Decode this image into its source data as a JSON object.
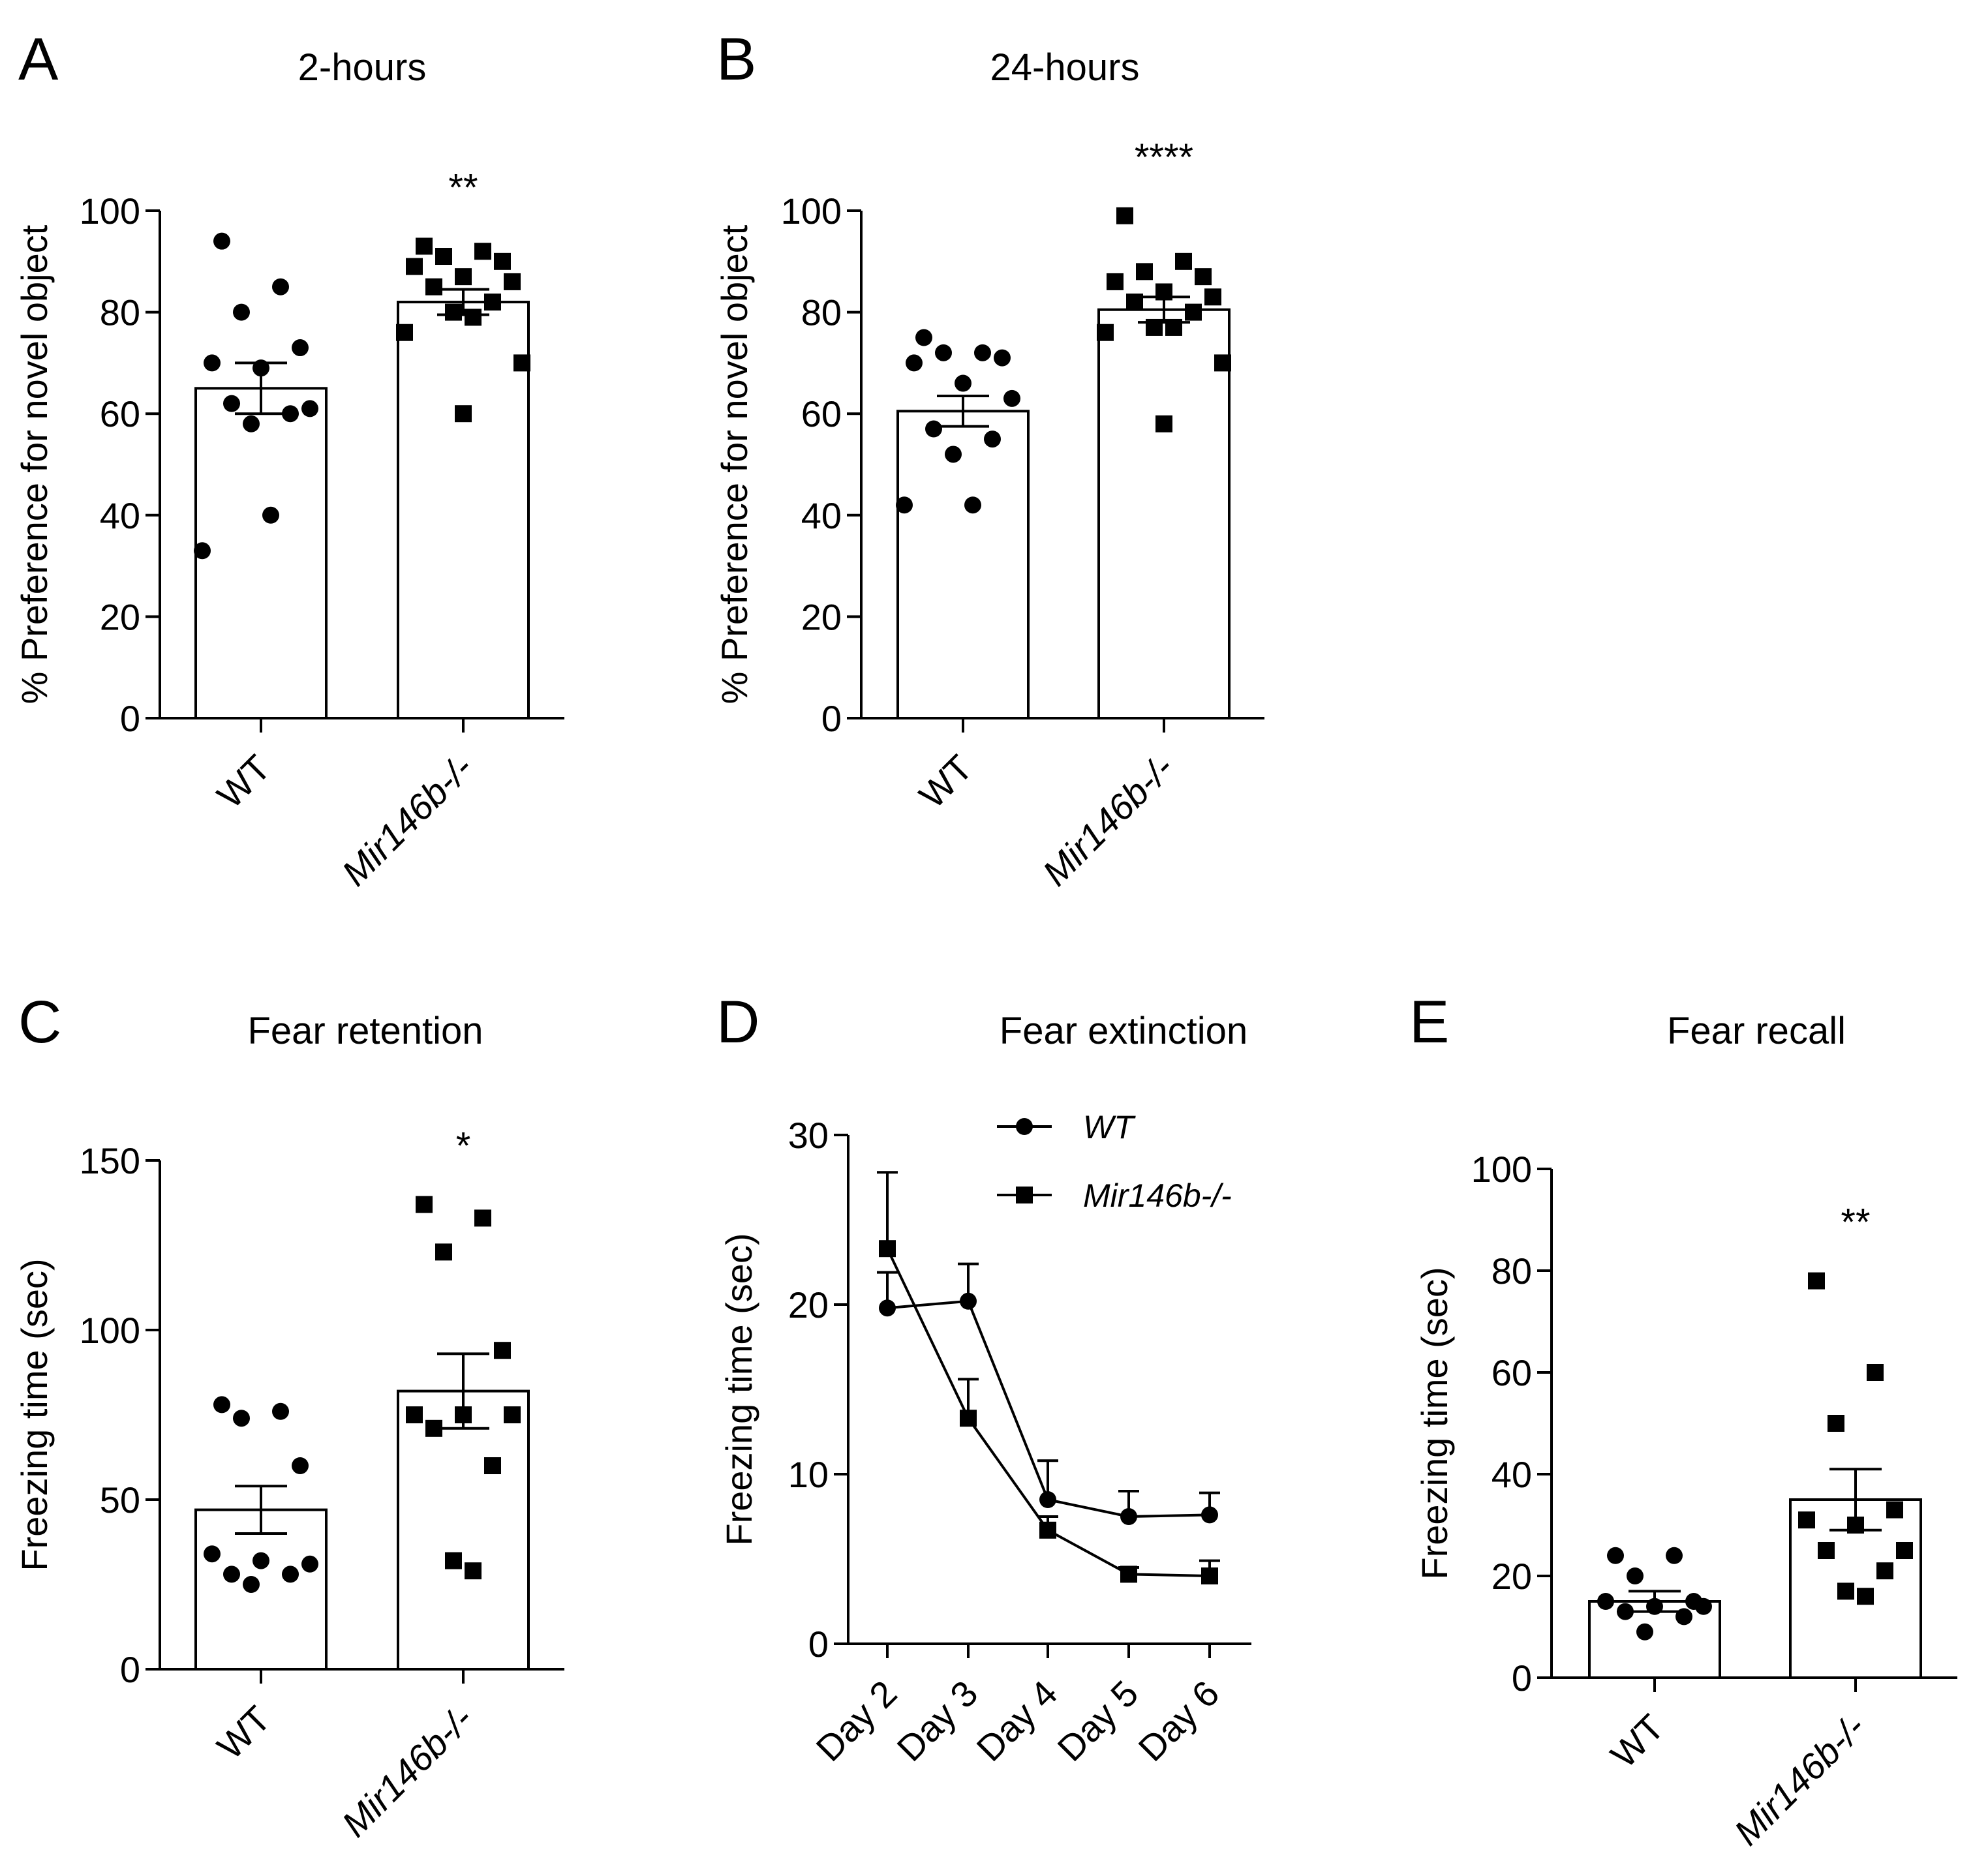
{
  "chart_data": [
    {
      "id": "A",
      "type": "bar",
      "letter": "A",
      "title": "2-hours",
      "ylabel": "% Preference for novel object",
      "xlabel": "",
      "ylim": [
        0,
        100
      ],
      "yticks": [
        0,
        20,
        40,
        60,
        80,
        100
      ],
      "categories": [
        "WT",
        "Mir146b-/-"
      ],
      "italic_categories": [
        false,
        true
      ],
      "values": [
        65,
        82
      ],
      "sem": [
        5,
        2.5
      ],
      "markers": [
        "circle",
        "square"
      ],
      "points": [
        [
          94,
          85,
          80,
          73,
          70,
          69,
          61,
          62,
          60,
          58,
          40,
          33
        ],
        [
          93,
          92,
          91,
          90,
          89,
          87,
          86,
          85,
          82,
          80,
          79,
          76,
          70,
          60
        ]
      ],
      "significance": [
        null,
        "**"
      ]
    },
    {
      "id": "B",
      "type": "bar",
      "letter": "B",
      "title": "24-hours",
      "ylabel": "% Preference for novel object",
      "xlabel": "",
      "ylim": [
        0,
        100
      ],
      "yticks": [
        0,
        20,
        40,
        60,
        80,
        100
      ],
      "categories": [
        "WT",
        "Mir146b-/-"
      ],
      "italic_categories": [
        false,
        true
      ],
      "values": [
        60.5,
        80.5
      ],
      "sem": [
        3,
        2.5
      ],
      "markers": [
        "circle",
        "square"
      ],
      "points": [
        [
          75,
          72,
          72,
          71,
          70,
          66,
          63,
          57,
          55,
          52,
          42,
          42
        ],
        [
          99,
          90,
          88,
          87,
          86,
          84,
          83,
          82,
          80,
          77,
          77,
          76,
          70,
          58
        ]
      ],
      "significance": [
        null,
        "****"
      ]
    },
    {
      "id": "C",
      "type": "bar",
      "letter": "C",
      "title": "Fear retention",
      "ylabel": "Freezing time (sec)",
      "xlabel": "",
      "ylim": [
        0,
        150
      ],
      "yticks": [
        0,
        50,
        100,
        150
      ],
      "categories": [
        "WT",
        "Mir146b-/-"
      ],
      "italic_categories": [
        false,
        true
      ],
      "values": [
        47,
        82
      ],
      "sem": [
        7,
        11
      ],
      "markers": [
        "circle",
        "square"
      ],
      "points": [
        [
          78,
          76,
          74,
          60,
          34,
          32,
          31,
          28,
          28,
          25
        ],
        [
          137,
          133,
          123,
          94,
          75,
          75,
          75,
          71,
          60,
          32,
          29
        ]
      ],
      "significance": [
        null,
        "*"
      ]
    },
    {
      "id": "D",
      "type": "line",
      "letter": "D",
      "title": "Fear extinction",
      "ylabel": "Freezing time (sec)",
      "xlabel": "",
      "ylim": [
        0,
        30
      ],
      "yticks": [
        0,
        10,
        20,
        30
      ],
      "x": [
        "Day 2",
        "Day 3",
        "Day 4",
        "Day 5",
        "Day 6"
      ],
      "series": [
        {
          "name": "WT",
          "marker": "circle",
          "values": [
            19.8,
            20.2,
            8.5,
            7.5,
            7.6
          ],
          "sem": [
            2.1,
            2.2,
            2.3,
            1.5,
            1.3
          ]
        },
        {
          "name": "Mir146b-/-",
          "marker": "square",
          "values": [
            23.3,
            13.3,
            6.7,
            4.1,
            4.0
          ],
          "sem": [
            4.5,
            2.3,
            0.8,
            0.4,
            0.9
          ]
        }
      ],
      "legend": "top-center"
    },
    {
      "id": "E",
      "type": "bar",
      "letter": "E",
      "title": "Fear recall",
      "ylabel": "Freezing time (sec)",
      "xlabel": "",
      "ylim": [
        0,
        100
      ],
      "yticks": [
        0,
        20,
        40,
        60,
        80,
        100
      ],
      "categories": [
        "WT",
        "Mir146b-/-"
      ],
      "italic_categories": [
        false,
        true
      ],
      "values": [
        15,
        35
      ],
      "sem": [
        2,
        6
      ],
      "markers": [
        "circle",
        "square"
      ],
      "points": [
        [
          24,
          24,
          20,
          15,
          15,
          14,
          14,
          13,
          12,
          9
        ],
        [
          78,
          60,
          50,
          33,
          31,
          30,
          25,
          25,
          21,
          17,
          16
        ]
      ],
      "significance": [
        null,
        "**"
      ]
    }
  ]
}
